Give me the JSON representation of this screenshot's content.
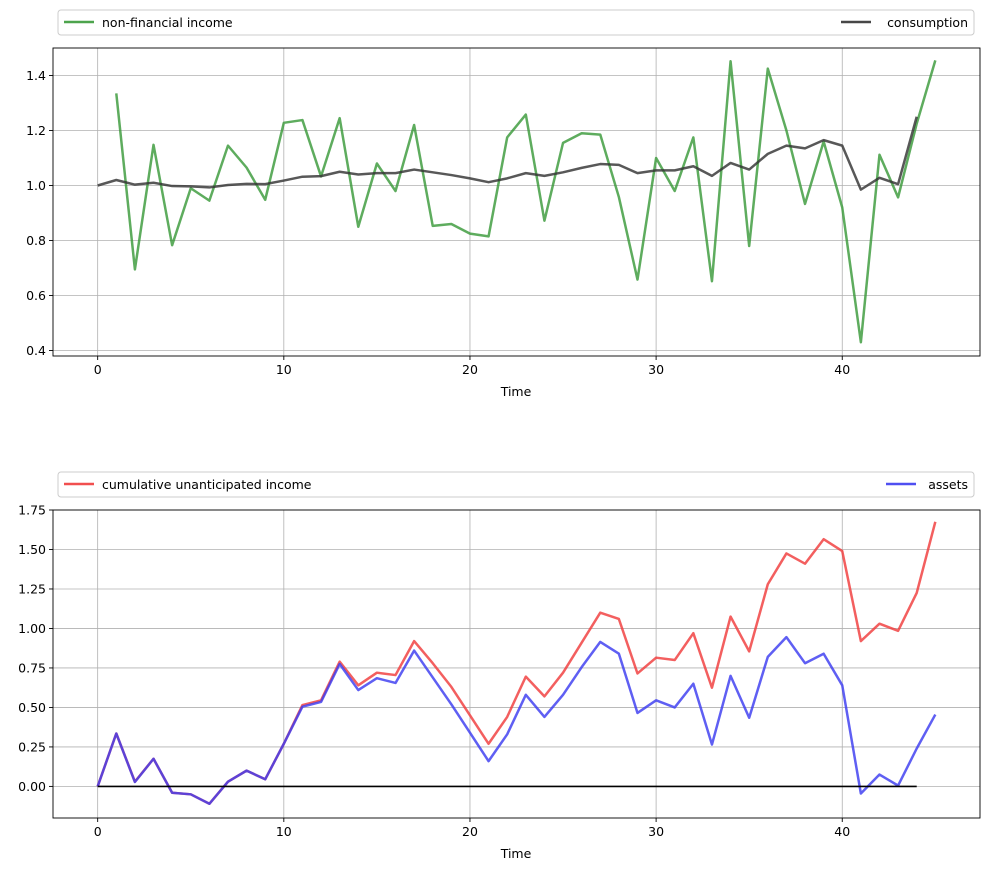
{
  "colors": {
    "green": "#3a9a3a",
    "black_line": "#333333",
    "red": "#f03c3c",
    "blue": "#3c3cf0",
    "zero": "#000000",
    "purple": "#6020b0"
  },
  "chart_data": [
    {
      "type": "line",
      "title": "",
      "xlabel": "Time",
      "ylabel": "",
      "xlim": [
        -2.4,
        47.4
      ],
      "ylim": [
        0.38,
        1.5
      ],
      "xticks": [
        0,
        10,
        20,
        30,
        40
      ],
      "yticks": [
        0.4,
        0.6,
        0.8,
        1.0,
        1.2,
        1.4
      ],
      "ytick_labels": [
        "0.4",
        "0.6",
        "0.8",
        "1.0",
        "1.2",
        "1.4"
      ],
      "grid": true,
      "legend_placement": "top-outside",
      "series": [
        {
          "name": "non-financial income",
          "color": "#3a9a3a",
          "x_start": 1,
          "values": [
            1.335,
            0.695,
            1.148,
            0.783,
            0.99,
            0.945,
            1.145,
            1.065,
            0.948,
            1.228,
            1.238,
            1.033,
            1.245,
            0.85,
            1.08,
            0.98,
            1.22,
            0.853,
            0.86,
            0.825,
            0.815,
            1.175,
            1.258,
            0.872,
            1.155,
            1.19,
            1.185,
            0.958,
            0.658,
            1.1,
            0.98,
            1.175,
            0.652,
            1.452,
            0.78,
            1.425,
            1.2,
            0.933,
            1.16,
            0.92,
            0.43,
            1.112,
            0.957,
            1.225,
            1.455
          ]
        },
        {
          "name": "consumption",
          "color": "#333333",
          "x_start": 0,
          "values": [
            1.0,
            1.02,
            1.003,
            1.01,
            0.998,
            0.997,
            0.993,
            1.002,
            1.006,
            1.005,
            1.018,
            1.032,
            1.034,
            1.05,
            1.04,
            1.045,
            1.045,
            1.058,
            1.048,
            1.038,
            1.026,
            1.012,
            1.026,
            1.045,
            1.035,
            1.048,
            1.064,
            1.078,
            1.075,
            1.045,
            1.055,
            1.055,
            1.07,
            1.035,
            1.082,
            1.058,
            1.115,
            1.145,
            1.135,
            1.165,
            1.145,
            0.985,
            1.028,
            1.005,
            1.25
          ]
        }
      ]
    },
    {
      "type": "line",
      "title": "",
      "xlabel": "Time",
      "ylabel": "",
      "xlim": [
        -2.4,
        47.4
      ],
      "ylim": [
        -0.2,
        1.75
      ],
      "xticks": [
        0,
        10,
        20,
        30,
        40
      ],
      "yticks": [
        0.0,
        0.25,
        0.5,
        0.75,
        1.0,
        1.25,
        1.5,
        1.75
      ],
      "ytick_labels": [
        "0.00",
        "0.25",
        "0.50",
        "0.75",
        "1.00",
        "1.25",
        "1.50",
        "1.75"
      ],
      "grid": true,
      "legend_placement": "top-outside",
      "series": [
        {
          "name": "cumulative unanticipated income",
          "color": "#f03c3c",
          "x_start": 0,
          "values": [
            0.0,
            0.335,
            0.03,
            0.175,
            -0.04,
            -0.05,
            -0.11,
            0.03,
            0.1,
            0.045,
            0.27,
            0.515,
            0.545,
            0.79,
            0.64,
            0.72,
            0.705,
            0.92,
            0.78,
            0.63,
            0.45,
            0.27,
            0.44,
            0.695,
            0.57,
            0.72,
            0.91,
            1.1,
            1.06,
            0.715,
            0.815,
            0.8,
            0.97,
            0.625,
            1.075,
            0.855,
            1.28,
            1.475,
            1.41,
            1.565,
            1.49,
            0.92,
            1.03,
            0.985,
            1.225,
            1.675
          ]
        },
        {
          "name": "assets",
          "color": "#3c3cf0",
          "x_start": 0,
          "values": [
            0.0,
            0.335,
            0.028,
            0.175,
            -0.04,
            -0.05,
            -0.11,
            0.03,
            0.1,
            0.045,
            0.27,
            0.505,
            0.535,
            0.775,
            0.61,
            0.685,
            0.655,
            0.86,
            0.69,
            0.52,
            0.34,
            0.16,
            0.33,
            0.58,
            0.44,
            0.58,
            0.755,
            0.915,
            0.84,
            0.465,
            0.545,
            0.5,
            0.65,
            0.265,
            0.7,
            0.435,
            0.82,
            0.945,
            0.78,
            0.84,
            0.64,
            -0.045,
            0.075,
            0.005,
            0.24,
            0.455
          ]
        },
        {
          "name": "zero line",
          "color": "#000000",
          "x_start": 0,
          "values": [
            0,
            0
          ],
          "x_values": [
            0,
            44
          ]
        }
      ]
    }
  ]
}
